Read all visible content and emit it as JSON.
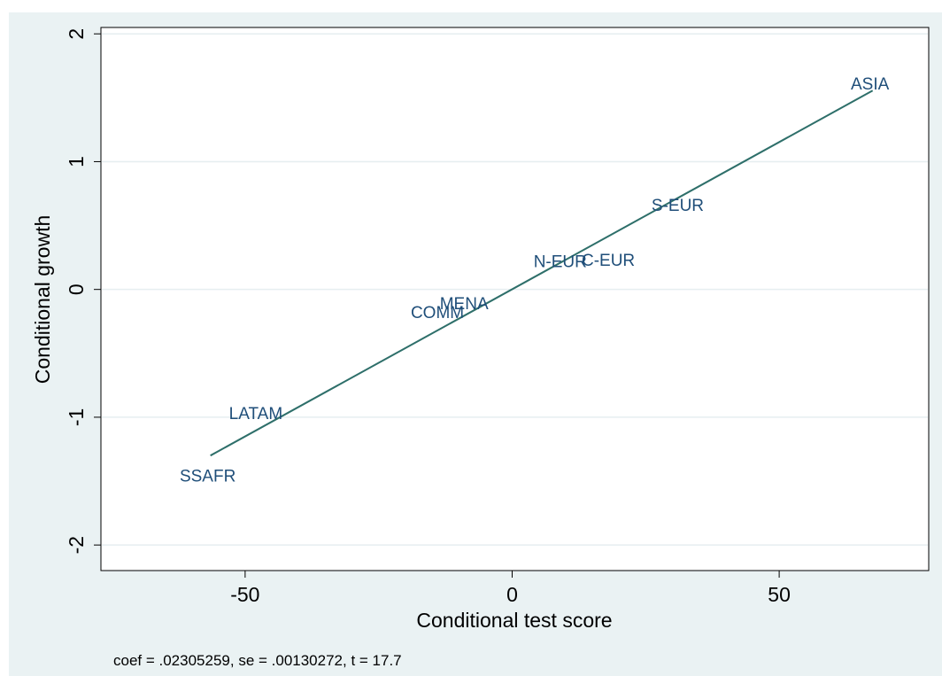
{
  "chart_data": {
    "type": "scatter",
    "xlabel": "Conditional test score",
    "ylabel": "Conditional growth",
    "xlim": [
      -77,
      78
    ],
    "ylim": [
      -2.2,
      2.05
    ],
    "xticks": [
      -50,
      0,
      50
    ],
    "xtick_labels": [
      "-50",
      "0",
      "50"
    ],
    "yticks": [
      -2,
      -1,
      0,
      1,
      2
    ],
    "ytick_labels": [
      "-2",
      "-1",
      "0",
      "1",
      "2"
    ],
    "grid": "horizontal",
    "points": [
      {
        "label": "ASIA",
        "x": 67,
        "y": 1.6
      },
      {
        "label": "S-EUR",
        "x": 31,
        "y": 0.65
      },
      {
        "label": "N-EUR",
        "x": 9,
        "y": 0.21
      },
      {
        "label": "C-EUR",
        "x": 18,
        "y": 0.22
      },
      {
        "label": "MENA",
        "x": -9,
        "y": -0.12
      },
      {
        "label": "COMM",
        "x": -14,
        "y": -0.19
      },
      {
        "label": "LATAM",
        "x": -48,
        "y": -0.98
      },
      {
        "label": "SSAFR",
        "x": -57,
        "y": -1.47
      }
    ],
    "fit_line": {
      "x": [
        -56.5,
        67.5
      ],
      "y": [
        -1.3,
        1.556
      ]
    },
    "colors": {
      "label": "#1f4e79",
      "line": "#2e6f6a",
      "plot_bg": "#ffffff",
      "frame_bg": "#eaf2f3",
      "grid": "#e6eef0"
    }
  },
  "note": "coef = .02305259, se = .00130272, t = 17.7"
}
